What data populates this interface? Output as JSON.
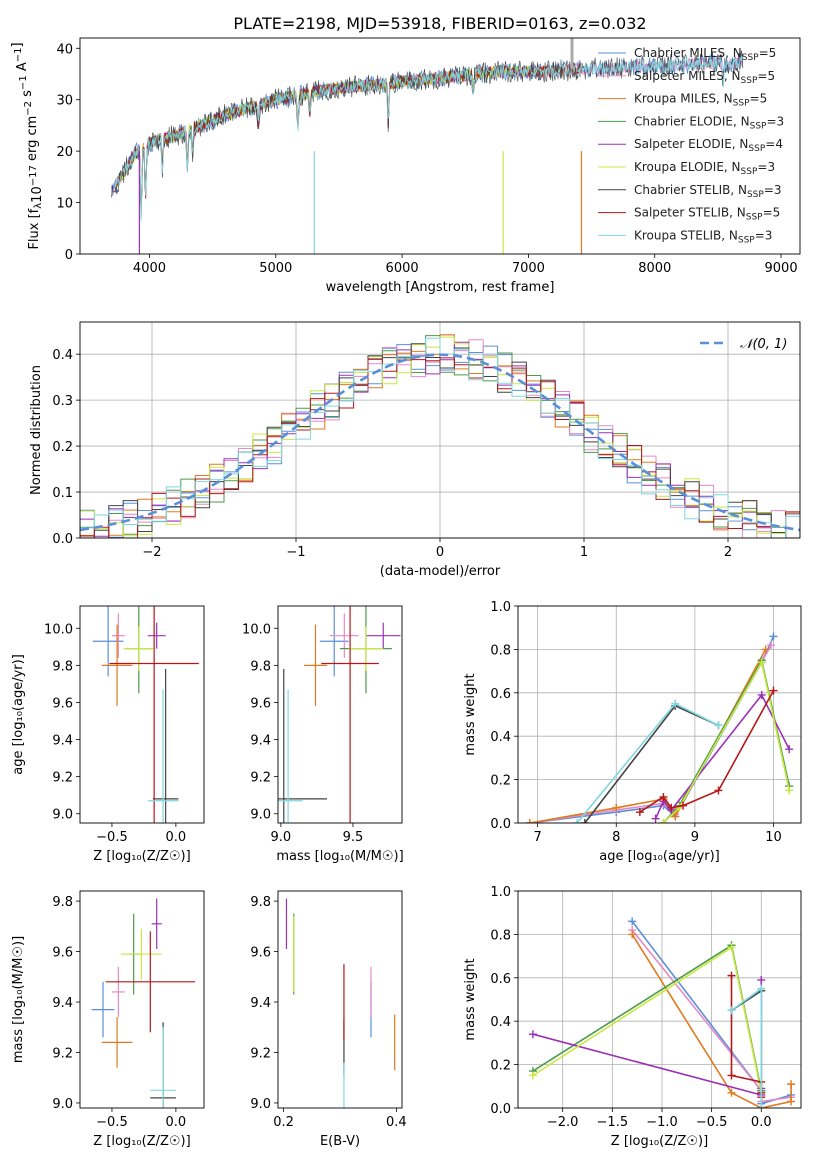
{
  "colors": [
    "#5b8fd9",
    "#e58ac8",
    "#e07a1e",
    "#4c9a4c",
    "#9b30b8",
    "#c8e840",
    "#444444",
    "#b51818",
    "#7fd7e0"
  ],
  "chart_data": [
    {
      "id": "spectrum",
      "type": "line",
      "title": "PLATE=2198, MJD=53918, FIBERID=0163, z=0.032",
      "xlabel": "wavelength [Angstrom, rest frame]",
      "ylabel_parts": [
        "Flux [f",
        "λ",
        "10",
        "−17",
        " erg cm",
        "−2",
        " s",
        "−1",
        " A",
        "−1",
        "]"
      ],
      "xlim": [
        3450,
        9150
      ],
      "ylim": [
        0,
        42
      ],
      "xticks": [
        4000,
        5000,
        6000,
        7000,
        8000,
        9000
      ],
      "yticks": [
        0,
        10,
        20,
        30,
        40
      ],
      "continuum": {
        "x": [
          3700,
          3800,
          3900,
          4000,
          4100,
          4200,
          4400,
          4600,
          4800,
          5000,
          5200,
          5400,
          5600,
          5800,
          6000,
          6200,
          6400,
          6600,
          6800,
          7000,
          7200,
          7400,
          7600,
          7800,
          8000,
          8200,
          8400,
          8600,
          8700
        ],
        "y": [
          12,
          16,
          20,
          21.5,
          22.5,
          23,
          25,
          27,
          28.5,
          30,
          31,
          32,
          32.5,
          33,
          33.5,
          34,
          34.5,
          35,
          35.5,
          35.5,
          35.5,
          36,
          36,
          36.5,
          36.5,
          36.8,
          37,
          37.2,
          37.5
        ]
      },
      "absorption_features": [
        {
          "x": 3934,
          "depth": 13
        },
        {
          "x": 3969,
          "depth": 10
        },
        {
          "x": 4102,
          "depth": 6
        },
        {
          "x": 4300,
          "depth": 7
        },
        {
          "x": 4340,
          "depth": 5
        },
        {
          "x": 4861,
          "depth": 4
        },
        {
          "x": 5175,
          "depth": 6
        },
        {
          "x": 5270,
          "depth": 4
        },
        {
          "x": 5890,
          "depth": 8
        },
        {
          "x": 6563,
          "depth": 3
        },
        {
          "x": 8542,
          "depth": 4
        }
      ],
      "glitches": [
        {
          "x": 3920,
          "y_low": 0,
          "series": 4
        },
        {
          "x": 5305,
          "y_low": 0,
          "series": 8
        },
        {
          "x": 6800,
          "y_low": 0,
          "series": 5
        },
        {
          "x": 7420,
          "y_low": 0,
          "series": 2
        },
        {
          "x": 7345,
          "y_high": 42,
          "series": 6
        }
      ],
      "legend": [
        {
          "name": "Chabrier MILES, ",
          "sub": "SSP",
          "n": "=5"
        },
        {
          "name": "Salpeter MILES, ",
          "sub": "SSP",
          "n": "=5"
        },
        {
          "name": "Kroupa MILES, ",
          "sub": "SSP",
          "n": "=5"
        },
        {
          "name": "Chabrier ELODIE, ",
          "sub": "SSP",
          "n": "=3"
        },
        {
          "name": "Salpeter ELODIE, ",
          "sub": "SSP",
          "n": "=4"
        },
        {
          "name": "Kroupa ELODIE, ",
          "sub": "SSP",
          "n": "=3"
        },
        {
          "name": "Chabrier STELIB, ",
          "sub": "SSP",
          "n": "=3"
        },
        {
          "name": "Salpeter STELIB, ",
          "sub": "SSP",
          "n": "=5"
        },
        {
          "name": "Kroupa STELIB, ",
          "sub": "SSP",
          "n": "=3"
        }
      ],
      "legend_loc": "upper right",
      "legend_N": "N"
    },
    {
      "id": "residuals",
      "type": "histogram",
      "xlabel": "(data-model)/error",
      "ylabel": "Normed distribution",
      "xlim": [
        -2.5,
        2.5
      ],
      "ylim": [
        0,
        0.47
      ],
      "xticks": [
        -2,
        -1,
        0,
        1,
        2
      ],
      "xticklabels": [
        "−2",
        "−1",
        "0",
        "1",
        "2"
      ],
      "yticks": [
        0.0,
        0.1,
        0.2,
        0.3,
        0.4
      ],
      "yticklabels": [
        "0.0",
        "0.1",
        "0.2",
        "0.3",
        "0.4"
      ],
      "bin_width": 0.1,
      "grid": true,
      "reference": {
        "name": "𝒩(0, 1)",
        "mu": 0,
        "sigma": 1
      },
      "legend_loc": "upper right"
    },
    {
      "id": "age-vs-Z",
      "type": "errorbar",
      "xlabel": "Z [log₁₀(Z/Z☉)]",
      "ylabel": "age  [log₁₀(age/yr)]",
      "xlim": [
        -0.75,
        0.22
      ],
      "ylim": [
        8.95,
        10.12
      ],
      "xticks": [
        -0.5,
        0.0
      ],
      "xticklabels": [
        "−0.5",
        "0.0"
      ],
      "yticks": [
        9.0,
        9.2,
        9.4,
        9.6,
        9.8,
        10.0
      ],
      "yticklabels": [
        "9.0",
        "9.2",
        "9.4",
        "9.6",
        "9.8",
        "10.0"
      ],
      "points": [
        {
          "s": 0,
          "x": -0.53,
          "y": 9.93,
          "xe": 0.12,
          "ye": 0.19
        },
        {
          "s": 1,
          "x": -0.45,
          "y": 9.96,
          "xe": 0.05,
          "ye": 0.12
        },
        {
          "s": 2,
          "x": -0.46,
          "y": 9.8,
          "xe": 0.12,
          "ye": 0.22
        },
        {
          "s": 3,
          "x": -0.29,
          "y": 9.89,
          "xe": 0.1,
          "ye": 0.24
        },
        {
          "s": 4,
          "x": -0.15,
          "y": 9.96,
          "xe": 0.07,
          "ye": 0.07
        },
        {
          "s": 5,
          "x": -0.29,
          "y": 9.89,
          "xe": 0.12,
          "ye": 0.12
        },
        {
          "s": 6,
          "x": -0.08,
          "y": 9.08,
          "xe": 0.1,
          "ye": 0.7
        },
        {
          "s": 7,
          "x": -0.17,
          "y": 9.81,
          "xe": 0.35,
          "ye": 0.9
        },
        {
          "s": 8,
          "x": -0.1,
          "y": 9.07,
          "xe": 0.12,
          "ye": 0.6
        }
      ]
    },
    {
      "id": "age-vs-mass",
      "type": "errorbar",
      "xlabel": "mass [log₁₀(M/M☉)]",
      "ylabel": "",
      "xlim": [
        8.98,
        9.84
      ],
      "ylim": [
        8.95,
        10.12
      ],
      "xticks": [
        9.0,
        9.5
      ],
      "xticklabels": [
        "9.0",
        "9.5"
      ],
      "yticks": [
        9.0,
        9.2,
        9.4,
        9.6,
        9.8,
        10.0
      ],
      "yticklabels": [
        "9.0",
        "9.2",
        "9.4",
        "9.6",
        "9.8",
        "10.0"
      ],
      "points": [
        {
          "s": 0,
          "x": 9.37,
          "y": 9.93,
          "xe": 0.1,
          "ye": 0.19
        },
        {
          "s": 1,
          "x": 9.44,
          "y": 9.96,
          "xe": 0.1,
          "ye": 0.12
        },
        {
          "s": 2,
          "x": 9.24,
          "y": 9.8,
          "xe": 0.08,
          "ye": 0.22
        },
        {
          "s": 3,
          "x": 9.59,
          "y": 9.89,
          "xe": 0.18,
          "ye": 0.24
        },
        {
          "s": 4,
          "x": 9.71,
          "y": 9.96,
          "xe": 0.12,
          "ye": 0.07
        },
        {
          "s": 5,
          "x": 9.59,
          "y": 9.89,
          "xe": 0.12,
          "ye": 0.12
        },
        {
          "s": 6,
          "x": 9.02,
          "y": 9.08,
          "xe": 0.3,
          "ye": 0.7
        },
        {
          "s": 7,
          "x": 9.48,
          "y": 9.81,
          "xe": 0.2,
          "ye": 0.9
        },
        {
          "s": 8,
          "x": 9.05,
          "y": 9.07,
          "xe": 0.1,
          "ye": 0.6
        }
      ]
    },
    {
      "id": "weight-vs-age",
      "type": "line",
      "xlabel": "age  [log₁₀(age/yr)]",
      "ylabel": "mass weight",
      "xlim": [
        6.75,
        10.35
      ],
      "ylim": [
        0,
        1.0
      ],
      "xticks": [
        7,
        8,
        9,
        10
      ],
      "xticklabels": [
        "7",
        "8",
        "9",
        "10"
      ],
      "yticks": [
        0,
        0.2,
        0.4,
        0.6,
        0.8,
        1.0
      ],
      "yticklabels": [
        "0.0",
        "0.2",
        "0.4",
        "0.6",
        "0.8",
        "1.0"
      ],
      "grid": true,
      "series": [
        {
          "s": 0,
          "x": [
            6.9,
            8.0,
            8.6,
            8.75,
            9.85,
            10.0
          ],
          "y": [
            0.0,
            0.05,
            0.08,
            0.03,
            0.74,
            0.86
          ]
        },
        {
          "s": 1,
          "x": [
            6.9,
            8.0,
            8.6,
            8.75,
            9.85,
            9.97
          ],
          "y": [
            0.0,
            0.06,
            0.09,
            0.04,
            0.74,
            0.82
          ]
        },
        {
          "s": 2,
          "x": [
            6.9,
            8.0,
            8.6,
            8.75,
            9.9
          ],
          "y": [
            0.0,
            0.07,
            0.11,
            0.03,
            0.8
          ]
        },
        {
          "s": 3,
          "x": [
            8.6,
            8.8,
            9.85,
            10.2
          ],
          "y": [
            0.0,
            0.08,
            0.75,
            0.17
          ]
        },
        {
          "s": 4,
          "x": [
            8.5,
            8.6,
            8.7,
            9.85,
            10.2
          ],
          "y": [
            0.02,
            0.1,
            0.06,
            0.59,
            0.34
          ]
        },
        {
          "s": 5,
          "x": [
            8.6,
            8.8,
            9.85,
            10.2
          ],
          "y": [
            0.0,
            0.07,
            0.74,
            0.15
          ]
        },
        {
          "s": 6,
          "x": [
            7.6,
            8.75,
            9.3
          ],
          "y": [
            0.0,
            0.54,
            0.45
          ]
        },
        {
          "s": 7,
          "x": [
            8.3,
            8.6,
            8.7,
            8.85,
            9.3,
            10.0
          ],
          "y": [
            0.05,
            0.12,
            0.07,
            0.08,
            0.15,
            0.61
          ]
        },
        {
          "s": 8,
          "x": [
            7.5,
            8.75,
            9.3
          ],
          "y": [
            0.0,
            0.55,
            0.45
          ]
        }
      ]
    },
    {
      "id": "mass-vs-Z",
      "type": "errorbar",
      "xlabel": "Z [log₁₀(Z/Z☉)]",
      "ylabel": "mass [log₁₀(M/M☉)]",
      "xlim": [
        -0.75,
        0.22
      ],
      "ylim": [
        8.98,
        9.84
      ],
      "xticks": [
        -0.5,
        0.0
      ],
      "xticklabels": [
        "−0.5",
        "0.0"
      ],
      "yticks": [
        9.0,
        9.2,
        9.4,
        9.6,
        9.8
      ],
      "yticklabels": [
        "9.0",
        "9.2",
        "9.4",
        "9.6",
        "9.8"
      ],
      "points": [
        {
          "s": 0,
          "x": -0.57,
          "y": 9.37,
          "xe": 0.09,
          "ye": 0.11
        },
        {
          "s": 1,
          "x": -0.45,
          "y": 9.44,
          "xe": 0.05,
          "ye": 0.1
        },
        {
          "s": 2,
          "x": -0.46,
          "y": 9.24,
          "xe": 0.12,
          "ye": 0.1
        },
        {
          "s": 3,
          "x": -0.33,
          "y": 9.59,
          "xe": 0.04,
          "ye": 0.16
        },
        {
          "s": 4,
          "x": -0.15,
          "y": 9.71,
          "xe": 0.04,
          "ye": 0.1
        },
        {
          "s": 5,
          "x": -0.27,
          "y": 9.59,
          "xe": 0.16,
          "ye": 0.1
        },
        {
          "s": 6,
          "x": -0.1,
          "y": 9.02,
          "xe": 0.1,
          "ye": 0.3
        },
        {
          "s": 7,
          "x": -0.2,
          "y": 9.48,
          "xe": 0.35,
          "ye": 0.2
        },
        {
          "s": 8,
          "x": -0.1,
          "y": 9.05,
          "xe": 0.1,
          "ye": 0.25
        }
      ]
    },
    {
      "id": "mass-vs-ebv",
      "type": "errorbar",
      "xlabel": "E(B-V)",
      "ylabel": "",
      "xlim": [
        0.19,
        0.41
      ],
      "ylim": [
        8.98,
        9.84
      ],
      "xticks": [
        0.2,
        0.4
      ],
      "xticklabels": [
        "0.2",
        "0.4"
      ],
      "yticks": [
        9.0,
        9.2,
        9.4,
        9.6,
        9.8
      ],
      "yticklabels": [
        "9.0",
        "9.2",
        "9.4",
        "9.6",
        "9.8"
      ],
      "points": [
        {
          "s": 0,
          "x": 0.355,
          "y": 9.37,
          "xe": 0,
          "ye": 0.11
        },
        {
          "s": 1,
          "x": 0.355,
          "y": 9.44,
          "xe": 0,
          "ye": 0.1
        },
        {
          "s": 2,
          "x": 0.397,
          "y": 9.24,
          "xe": 0,
          "ye": 0.11
        },
        {
          "s": 3,
          "x": 0.218,
          "y": 9.59,
          "xe": 0,
          "ye": 0.16
        },
        {
          "s": 4,
          "x": 0.205,
          "y": 9.71,
          "xe": 0,
          "ye": 0.1
        },
        {
          "s": 5,
          "x": 0.218,
          "y": 9.59,
          "xe": 0,
          "ye": 0.15
        },
        {
          "s": 6,
          "x": 0.307,
          "y": 9.22,
          "xe": 0,
          "ye": 0.11
        },
        {
          "s": 7,
          "x": 0.307,
          "y": 9.4,
          "xe": 0,
          "ye": 0.15
        },
        {
          "s": 8,
          "x": 0.307,
          "y": 9.06,
          "xe": 0,
          "ye": 0.1
        }
      ]
    },
    {
      "id": "weight-vs-Z",
      "type": "line",
      "xlabel": "Z [log₁₀(Z/Z☉)]",
      "ylabel": "mass weight",
      "xlim": [
        -2.45,
        0.4
      ],
      "ylim": [
        0,
        1.0
      ],
      "xticks": [
        -2.0,
        -1.5,
        -1.0,
        -0.5,
        0.0
      ],
      "xticklabels": [
        "−2.0",
        "−1.5",
        "−1.0",
        "−0.5",
        "0.0"
      ],
      "yticks": [
        0,
        0.2,
        0.4,
        0.6,
        0.8,
        1.0
      ],
      "yticklabels": [
        "0.0",
        "0.2",
        "0.4",
        "0.6",
        "0.8",
        "1.0"
      ],
      "grid": true,
      "series": [
        {
          "s": 0,
          "x": [
            -1.3,
            0.0,
            0.0,
            0.3
          ],
          "y": [
            0.86,
            0.08,
            0.02,
            0.06
          ]
        },
        {
          "s": 1,
          "x": [
            -1.3,
            0.0,
            0.0,
            0.3
          ],
          "y": [
            0.82,
            0.08,
            0.03,
            0.05
          ]
        },
        {
          "s": 2,
          "x": [
            -1.3,
            -0.3,
            0.0,
            0.3,
            0.3
          ],
          "y": [
            0.8,
            0.07,
            0.0,
            0.03,
            0.11
          ]
        },
        {
          "s": 3,
          "x": [
            -2.3,
            -0.3,
            0.0
          ],
          "y": [
            0.17,
            0.75,
            0.08
          ]
        },
        {
          "s": 4,
          "x": [
            -2.3,
            0.0,
            0.0,
            0.0
          ],
          "y": [
            0.34,
            0.06,
            0.09,
            0.59
          ]
        },
        {
          "s": 5,
          "x": [
            -2.3,
            -0.3,
            0.0
          ],
          "y": [
            0.15,
            0.74,
            0.07
          ]
        },
        {
          "s": 6,
          "x": [
            -0.3,
            0.0,
            0.0
          ],
          "y": [
            0.45,
            0.54,
            0.0
          ]
        },
        {
          "s": 7,
          "x": [
            -0.3,
            -0.3,
            0.0,
            0.0,
            0.0
          ],
          "y": [
            0.61,
            0.15,
            0.12,
            0.07,
            0.05
          ]
        },
        {
          "s": 8,
          "x": [
            -0.3,
            0.0,
            0.0
          ],
          "y": [
            0.45,
            0.55,
            0.0
          ]
        }
      ]
    }
  ]
}
